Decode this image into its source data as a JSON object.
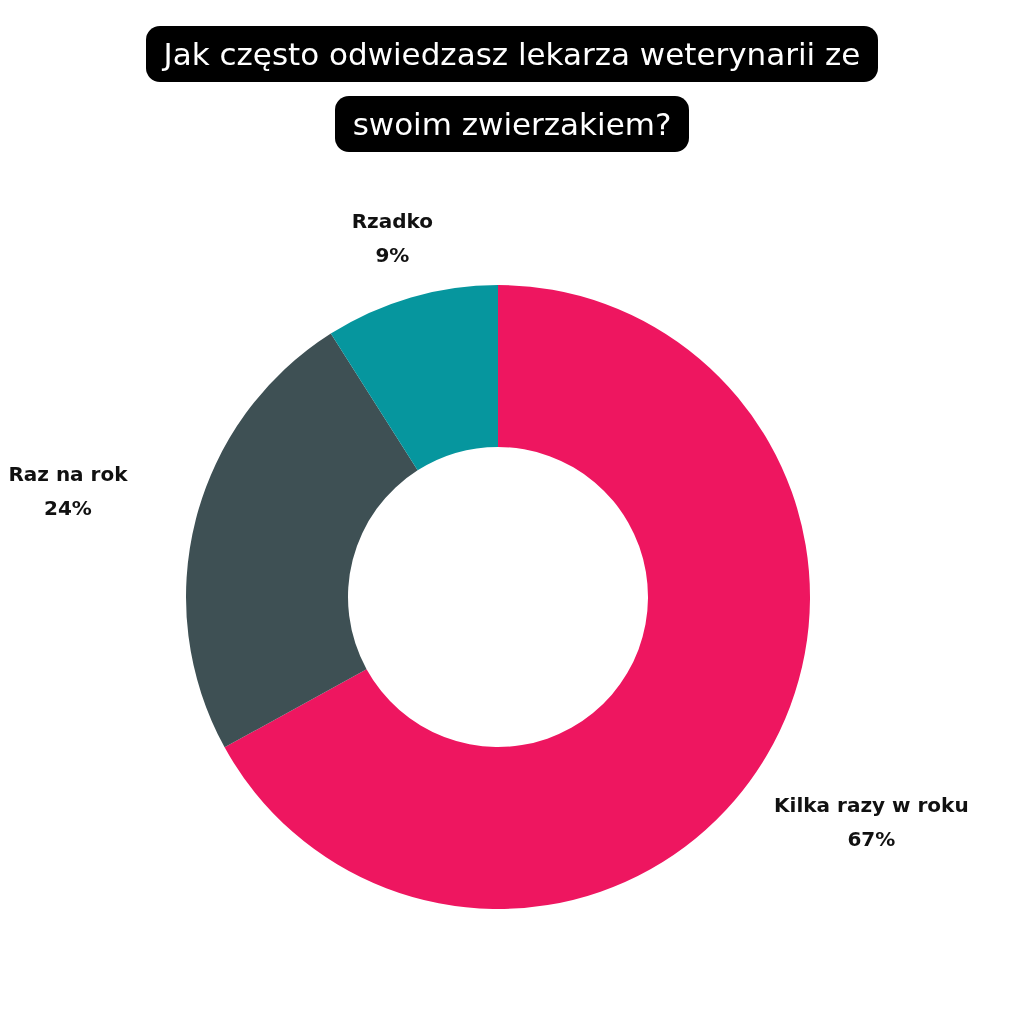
{
  "chart_data": {
    "type": "donut",
    "title": "Jak często odwiedzasz lekarza weterynarii ze swoim zwierzakiem?",
    "categories": [
      "Kilka razy w roku",
      "Raz na rok",
      "Rzadko"
    ],
    "values": [
      67,
      24,
      9
    ],
    "colors": [
      "#ee1660",
      "#3e5054",
      "#06969e"
    ],
    "value_labels": [
      "67%",
      "24%",
      "9%"
    ],
    "legend": false
  }
}
